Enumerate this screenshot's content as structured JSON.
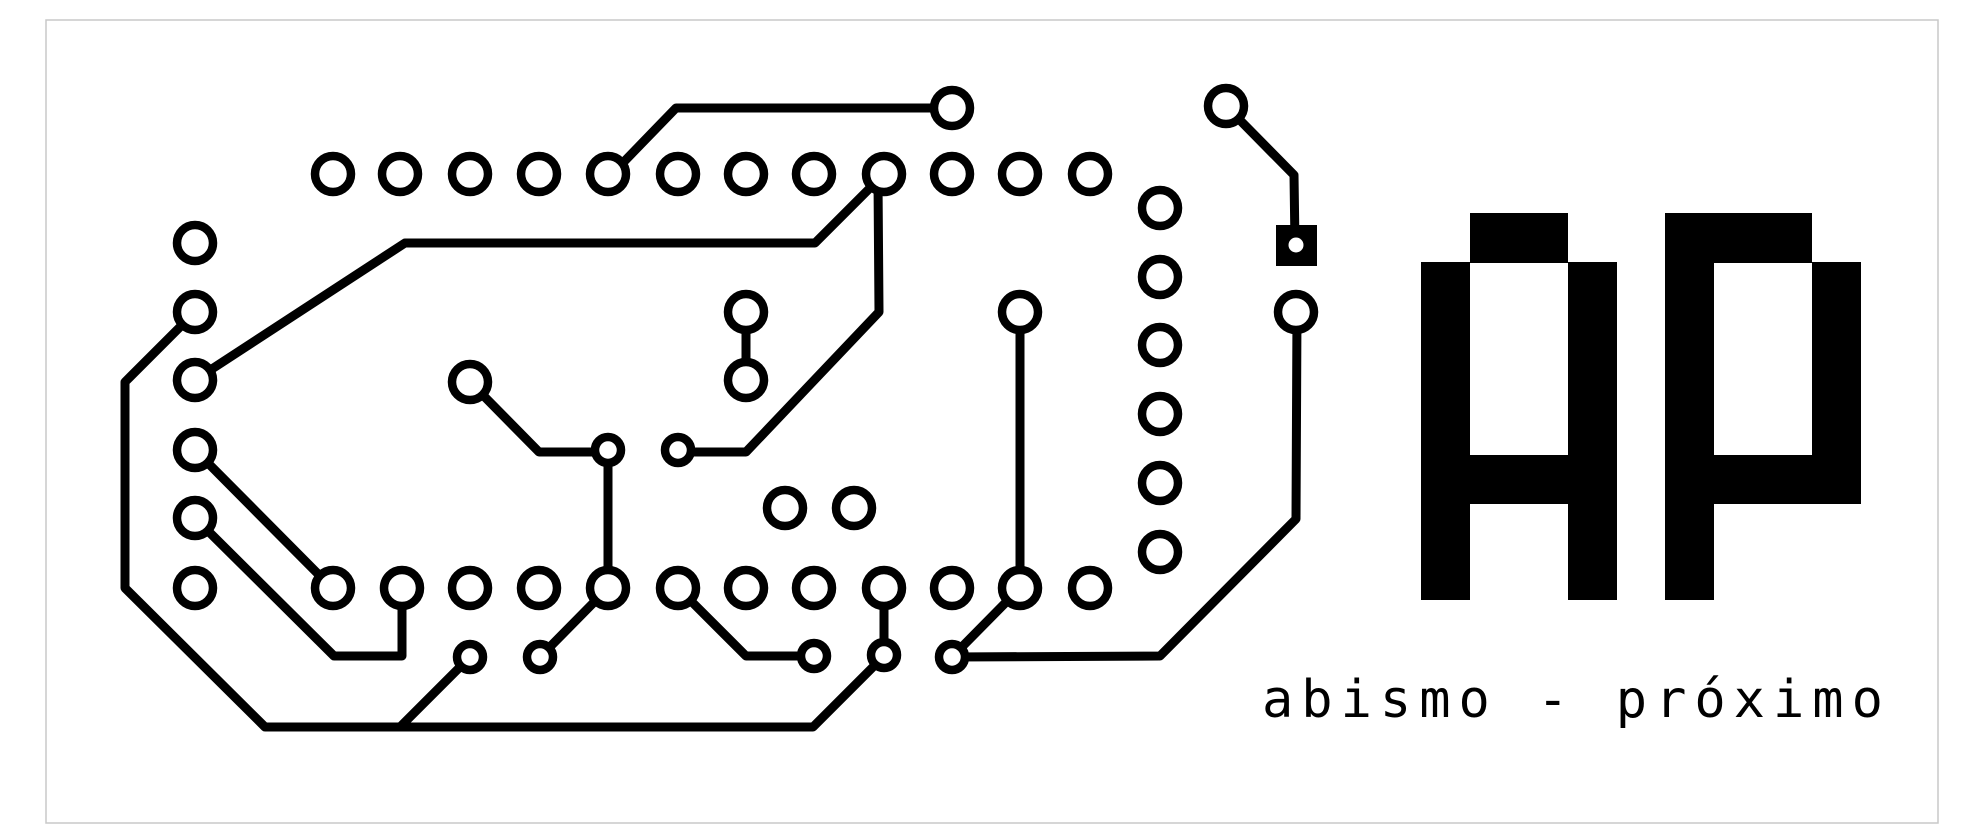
{
  "caption": "abismo - próximo",
  "logo_letters": "AP",
  "colors": {
    "copper": "#000000",
    "board": "#ffffff",
    "border": "#c8c8c8"
  }
}
